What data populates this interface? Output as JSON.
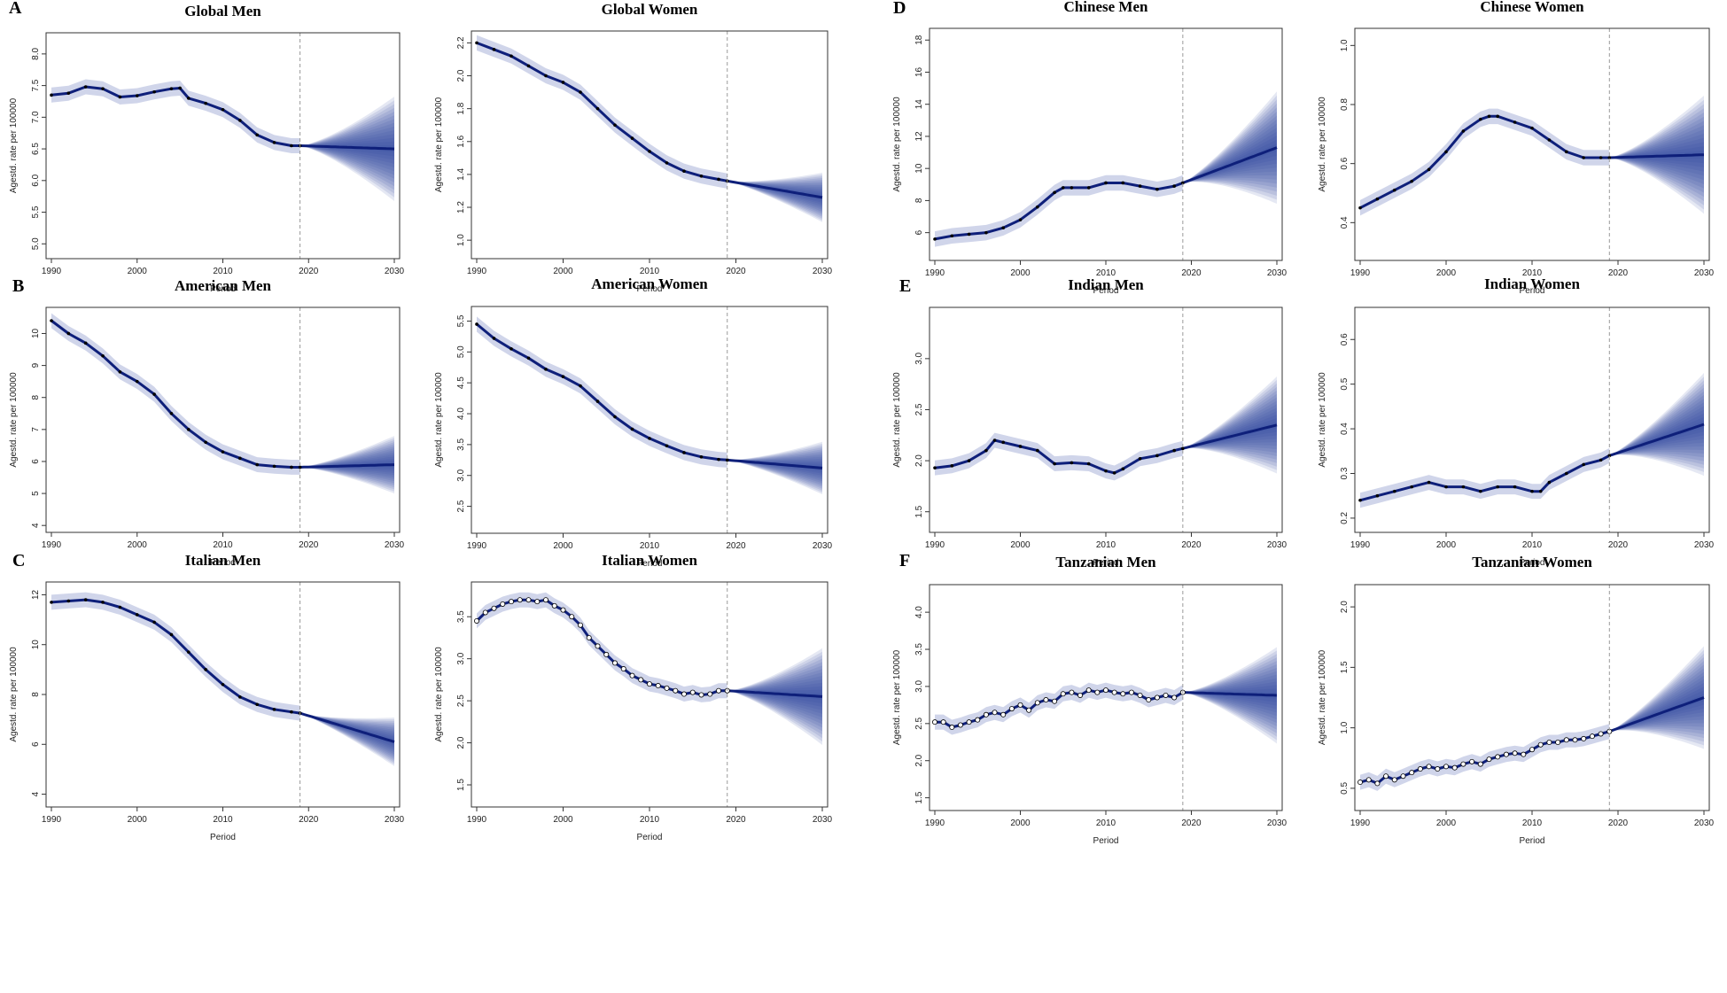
{
  "figure": {
    "panel_letters": [
      "A",
      "B",
      "C",
      "D",
      "E",
      "F"
    ]
  },
  "colors": {
    "band": "#2a3fa0",
    "line": "#0e1f7a",
    "point": "#000000",
    "frame": "#333333",
    "divider": "#9a9a9a"
  },
  "chart_data": [
    {
      "type": "line",
      "title": "Global Men",
      "xlabel": "Period",
      "ylabel": "Agestd. rate per 100000",
      "xlim": [
        1990,
        2030
      ],
      "xticks": [
        1990,
        2000,
        2010,
        2020,
        2030
      ],
      "ylim": [
        4.85,
        8.25
      ],
      "yticks": [
        5.0,
        5.5,
        6.0,
        6.5,
        7.0,
        7.5,
        8.0
      ],
      "ydec": 1,
      "observed_end": 2019,
      "point_style": "dark",
      "observed_x": [
        1990,
        1992,
        1994,
        1996,
        1998,
        2000,
        2002,
        2004,
        2005,
        2006,
        2008,
        2010,
        2012,
        2014,
        2016,
        2018,
        2019
      ],
      "observed_y": [
        7.35,
        7.38,
        7.48,
        7.45,
        7.32,
        7.34,
        7.4,
        7.45,
        7.46,
        7.3,
        7.22,
        7.12,
        6.95,
        6.72,
        6.6,
        6.55,
        6.55
      ],
      "forecast_end": 6.5,
      "forecast_spread": 1.65
    },
    {
      "type": "line",
      "title": "Global Women",
      "xlabel": "Period",
      "ylabel": "Agestd. rate per 100000",
      "xlim": [
        1990,
        2030
      ],
      "xticks": [
        1990,
        2000,
        2010,
        2020,
        2030
      ],
      "ylim": [
        0.92,
        2.24
      ],
      "yticks": [
        1.0,
        1.2,
        1.4,
        1.6,
        1.8,
        2.0,
        2.2
      ],
      "ydec": 1,
      "observed_end": 2019,
      "point_style": "dark",
      "observed_x": [
        1990,
        1992,
        1994,
        1996,
        1998,
        2000,
        2002,
        2004,
        2006,
        2008,
        2010,
        2012,
        2014,
        2016,
        2018,
        2019
      ],
      "observed_y": [
        2.2,
        2.16,
        2.12,
        2.06,
        2.0,
        1.96,
        1.9,
        1.8,
        1.7,
        1.62,
        1.54,
        1.47,
        1.42,
        1.39,
        1.37,
        1.36
      ],
      "forecast_end": 1.26,
      "forecast_spread": 0.3
    },
    {
      "type": "line",
      "title": "Chinese Men",
      "xlabel": "Period",
      "ylabel": "Agestd. rate per 100000",
      "xlim": [
        1990,
        2030
      ],
      "xticks": [
        1990,
        2000,
        2010,
        2020,
        2030
      ],
      "ylim": [
        4.6,
        18.4
      ],
      "yticks": [
        6,
        8,
        10,
        12,
        14,
        16,
        18
      ],
      "ydec": 0,
      "observed_end": 2019,
      "point_style": "dark",
      "observed_x": [
        1990,
        1992,
        1994,
        1996,
        1998,
        2000,
        2002,
        2004,
        2005,
        2006,
        2008,
        2010,
        2012,
        2014,
        2016,
        2018,
        2019
      ],
      "observed_y": [
        5.6,
        5.8,
        5.9,
        6.0,
        6.3,
        6.8,
        7.6,
        8.5,
        8.8,
        8.8,
        8.8,
        9.1,
        9.1,
        8.9,
        8.7,
        8.9,
        9.1
      ],
      "forecast_end": 11.3,
      "forecast_spread": 7.0
    },
    {
      "type": "line",
      "title": "Chinese Women",
      "xlabel": "Period",
      "ylabel": "Agestd. rate per 100000",
      "xlim": [
        1990,
        2030
      ],
      "xticks": [
        1990,
        2000,
        2010,
        2020,
        2030
      ],
      "ylim": [
        0.29,
        1.04
      ],
      "yticks": [
        0.4,
        0.6,
        0.8,
        1.0
      ],
      "ydec": 1,
      "observed_end": 2019,
      "point_style": "dark",
      "observed_x": [
        1990,
        1992,
        1994,
        1996,
        1998,
        2000,
        2002,
        2004,
        2005,
        2006,
        2008,
        2010,
        2012,
        2014,
        2016,
        2018,
        2019
      ],
      "observed_y": [
        0.45,
        0.48,
        0.51,
        0.54,
        0.58,
        0.64,
        0.71,
        0.75,
        0.76,
        0.76,
        0.74,
        0.72,
        0.68,
        0.64,
        0.62,
        0.62,
        0.62
      ],
      "forecast_end": 0.63,
      "forecast_spread": 0.4
    },
    {
      "type": "line",
      "title": "American Men",
      "xlabel": "Period",
      "ylabel": "Agestd. rate per 100000",
      "xlim": [
        1990,
        2030
      ],
      "xticks": [
        1990,
        2000,
        2010,
        2020,
        2030
      ],
      "ylim": [
        3.95,
        10.65
      ],
      "yticks": [
        4,
        5,
        6,
        7,
        8,
        9,
        10
      ],
      "ydec": 0,
      "observed_end": 2019,
      "point_style": "dark",
      "observed_x": [
        1990,
        1992,
        1994,
        1996,
        1998,
        2000,
        2002,
        2004,
        2006,
        2008,
        2010,
        2012,
        2014,
        2016,
        2018,
        2019
      ],
      "observed_y": [
        10.4,
        10.0,
        9.7,
        9.3,
        8.8,
        8.5,
        8.1,
        7.5,
        7.0,
        6.6,
        6.3,
        6.1,
        5.9,
        5.85,
        5.82,
        5.82
      ],
      "forecast_end": 5.9,
      "forecast_spread": 1.8
    },
    {
      "type": "line",
      "title": "American Women",
      "xlabel": "Period",
      "ylabel": "Agestd. rate per 100000",
      "xlim": [
        1990,
        2030
      ],
      "xticks": [
        1990,
        2000,
        2010,
        2020,
        2030
      ],
      "ylim": [
        2.15,
        5.65
      ],
      "yticks": [
        2.5,
        3.0,
        3.5,
        4.0,
        4.5,
        5.0,
        5.5
      ],
      "ydec": 1,
      "observed_end": 2019,
      "point_style": "dark",
      "observed_x": [
        1990,
        1992,
        1994,
        1996,
        1998,
        2000,
        2002,
        2004,
        2006,
        2008,
        2010,
        2012,
        2014,
        2016,
        2018,
        2019
      ],
      "observed_y": [
        5.45,
        5.22,
        5.05,
        4.9,
        4.72,
        4.6,
        4.45,
        4.2,
        3.95,
        3.75,
        3.6,
        3.48,
        3.37,
        3.3,
        3.26,
        3.25
      ],
      "forecast_end": 3.12,
      "forecast_spread": 0.85
    },
    {
      "type": "line",
      "title": "Indian Men",
      "xlabel": "Period",
      "ylabel": "Agestd. rate per 100000",
      "xlim": [
        1990,
        2030
      ],
      "xticks": [
        1990,
        2000,
        2010,
        2020,
        2030
      ],
      "ylim": [
        1.35,
        3.45
      ],
      "yticks": [
        1.5,
        2.0,
        2.5,
        3.0
      ],
      "ydec": 1,
      "observed_end": 2019,
      "point_style": "dark",
      "observed_x": [
        1990,
        1992,
        1994,
        1996,
        1997,
        1998,
        2000,
        2002,
        2004,
        2006,
        2008,
        2010,
        2011,
        2012,
        2014,
        2016,
        2018,
        2019
      ],
      "observed_y": [
        1.93,
        1.95,
        2.0,
        2.1,
        2.2,
        2.18,
        2.14,
        2.1,
        1.97,
        1.98,
        1.97,
        1.9,
        1.88,
        1.92,
        2.02,
        2.05,
        2.1,
        2.12
      ],
      "forecast_end": 2.35,
      "forecast_spread": 0.95
    },
    {
      "type": "line",
      "title": "Indian Women",
      "xlabel": "Period",
      "ylabel": "Agestd. rate per 100000",
      "xlim": [
        1990,
        2030
      ],
      "xticks": [
        1990,
        2000,
        2010,
        2020,
        2030
      ],
      "ylim": [
        0.18,
        0.66
      ],
      "yticks": [
        0.2,
        0.3,
        0.4,
        0.5,
        0.6
      ],
      "ydec": 1,
      "observed_end": 2019,
      "point_style": "dark",
      "observed_x": [
        1990,
        1992,
        1994,
        1996,
        1998,
        2000,
        2002,
        2004,
        2006,
        2008,
        2010,
        2011,
        2012,
        2014,
        2016,
        2018,
        2019
      ],
      "observed_y": [
        0.24,
        0.25,
        0.26,
        0.27,
        0.28,
        0.27,
        0.27,
        0.26,
        0.27,
        0.27,
        0.26,
        0.26,
        0.28,
        0.3,
        0.32,
        0.33,
        0.34
      ],
      "forecast_end": 0.41,
      "forecast_spread": 0.23
    },
    {
      "type": "line",
      "title": "Italian Men",
      "xlabel": "Period",
      "ylabel": "Agestd. rate per 100000",
      "xlim": [
        1990,
        2030
      ],
      "xticks": [
        1990,
        2000,
        2010,
        2020,
        2030
      ],
      "ylim": [
        3.7,
        12.3
      ],
      "yticks": [
        4,
        6,
        8,
        10,
        12
      ],
      "ydec": 0,
      "observed_end": 2019,
      "point_style": "dark",
      "observed_x": [
        1990,
        1992,
        1994,
        1996,
        1998,
        2000,
        2002,
        2004,
        2006,
        2008,
        2010,
        2012,
        2014,
        2016,
        2018,
        2019
      ],
      "observed_y": [
        11.7,
        11.75,
        11.8,
        11.7,
        11.5,
        11.2,
        10.9,
        10.4,
        9.7,
        9.0,
        8.4,
        7.9,
        7.6,
        7.4,
        7.3,
        7.25
      ],
      "forecast_end": 6.1,
      "forecast_spread": 1.95
    },
    {
      "type": "line",
      "title": "Italian Women",
      "xlabel": "Period",
      "ylabel": "Agestd. rate per 100000",
      "xlim": [
        1990,
        2030
      ],
      "xticks": [
        1990,
        2000,
        2010,
        2020,
        2030
      ],
      "ylim": [
        1.3,
        3.85
      ],
      "yticks": [
        1.5,
        2.0,
        2.5,
        3.0,
        3.5
      ],
      "ydec": 1,
      "observed_end": 2019,
      "point_style": "light",
      "observed_x": [
        1990,
        1991,
        1992,
        1993,
        1994,
        1995,
        1996,
        1997,
        1998,
        1999,
        2000,
        2001,
        2002,
        2003,
        2004,
        2005,
        2006,
        2007,
        2008,
        2009,
        2010,
        2011,
        2012,
        2013,
        2014,
        2015,
        2016,
        2017,
        2018,
        2019
      ],
      "observed_y": [
        3.45,
        3.55,
        3.6,
        3.65,
        3.68,
        3.7,
        3.7,
        3.68,
        3.7,
        3.63,
        3.58,
        3.5,
        3.4,
        3.25,
        3.15,
        3.05,
        2.95,
        2.88,
        2.8,
        2.75,
        2.7,
        2.68,
        2.65,
        2.62,
        2.58,
        2.6,
        2.57,
        2.58,
        2.62,
        2.62
      ],
      "forecast_end": 2.55,
      "forecast_spread": 1.15
    },
    {
      "type": "line",
      "title": "Tanzanian Men",
      "xlabel": "Period",
      "ylabel": "Agestd. rate per 100000",
      "xlim": [
        1990,
        2030
      ],
      "xticks": [
        1990,
        2000,
        2010,
        2020,
        2030
      ],
      "ylim": [
        1.4,
        4.3
      ],
      "yticks": [
        1.5,
        2.0,
        2.5,
        3.0,
        3.5,
        4.0
      ],
      "ydec": 1,
      "observed_end": 2019,
      "point_style": "light",
      "observed_x": [
        1990,
        1991,
        1992,
        1993,
        1994,
        1995,
        1996,
        1997,
        1998,
        1999,
        2000,
        2001,
        2002,
        2003,
        2004,
        2005,
        2006,
        2007,
        2008,
        2009,
        2010,
        2011,
        2012,
        2013,
        2014,
        2015,
        2016,
        2017,
        2018,
        2019
      ],
      "observed_y": [
        2.52,
        2.52,
        2.45,
        2.48,
        2.52,
        2.55,
        2.62,
        2.65,
        2.62,
        2.7,
        2.75,
        2.68,
        2.78,
        2.82,
        2.8,
        2.9,
        2.92,
        2.88,
        2.95,
        2.92,
        2.95,
        2.92,
        2.9,
        2.92,
        2.88,
        2.82,
        2.85,
        2.88,
        2.85,
        2.92
      ],
      "forecast_end": 2.88,
      "forecast_spread": 1.3
    },
    {
      "type": "line",
      "title": "Tanzanian Women",
      "xlabel": "Period",
      "ylabel": "Agestd. rate per 100000",
      "xlim": [
        1990,
        2030
      ],
      "xticks": [
        1990,
        2000,
        2010,
        2020,
        2030
      ],
      "ylim": [
        0.36,
        2.14
      ],
      "yticks": [
        0.5,
        1.0,
        1.5,
        2.0
      ],
      "ydec": 1,
      "observed_end": 2019,
      "point_style": "light",
      "observed_x": [
        1990,
        1991,
        1992,
        1993,
        1994,
        1995,
        1996,
        1997,
        1998,
        1999,
        2000,
        2001,
        2002,
        2003,
        2004,
        2005,
        2006,
        2007,
        2008,
        2009,
        2010,
        2011,
        2012,
        2013,
        2014,
        2015,
        2016,
        2017,
        2018,
        2019
      ],
      "observed_y": [
        0.55,
        0.57,
        0.54,
        0.6,
        0.57,
        0.6,
        0.63,
        0.66,
        0.68,
        0.66,
        0.68,
        0.67,
        0.7,
        0.72,
        0.7,
        0.74,
        0.76,
        0.78,
        0.79,
        0.78,
        0.82,
        0.86,
        0.88,
        0.88,
        0.9,
        0.9,
        0.91,
        0.93,
        0.95,
        0.97
      ],
      "forecast_end": 1.25,
      "forecast_spread": 0.85
    }
  ]
}
